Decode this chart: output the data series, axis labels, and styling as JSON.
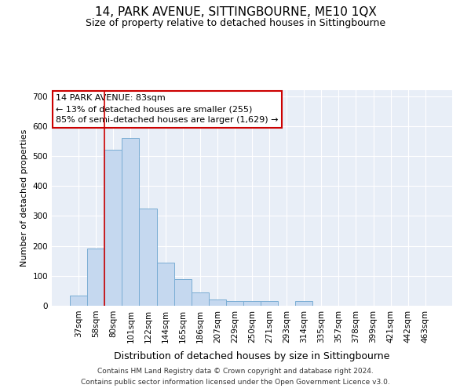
{
  "title": "14, PARK AVENUE, SITTINGBOURNE, ME10 1QX",
  "subtitle": "Size of property relative to detached houses in Sittingbourne",
  "xlabel": "Distribution of detached houses by size in Sittingbourne",
  "ylabel": "Number of detached properties",
  "footnote1": "Contains HM Land Registry data © Crown copyright and database right 2024.",
  "footnote2": "Contains public sector information licensed under the Open Government Licence v3.0.",
  "categories": [
    "37sqm",
    "58sqm",
    "80sqm",
    "101sqm",
    "122sqm",
    "144sqm",
    "165sqm",
    "186sqm",
    "207sqm",
    "229sqm",
    "250sqm",
    "271sqm",
    "293sqm",
    "314sqm",
    "335sqm",
    "357sqm",
    "378sqm",
    "399sqm",
    "421sqm",
    "442sqm",
    "463sqm"
  ],
  "values": [
    35,
    192,
    520,
    560,
    325,
    145,
    90,
    45,
    20,
    15,
    15,
    15,
    0,
    15,
    0,
    0,
    0,
    0,
    0,
    0,
    0
  ],
  "bar_color": "#c5d8ef",
  "bar_edgecolor": "#7aadd4",
  "vline_color": "#cc0000",
  "vline_x_index": 1.5,
  "annotation_text": "14 PARK AVENUE: 83sqm\n← 13% of detached houses are smaller (255)\n85% of semi-detached houses are larger (1,629) →",
  "annotation_box_edgecolor": "#cc0000",
  "ylim": [
    0,
    720
  ],
  "yticks": [
    0,
    100,
    200,
    300,
    400,
    500,
    600,
    700
  ],
  "background_color": "#e8eef7",
  "grid_color": "#ffffff",
  "title_fontsize": 11,
  "subtitle_fontsize": 9,
  "xlabel_fontsize": 9,
  "ylabel_fontsize": 8,
  "tick_fontsize": 7.5,
  "annotation_fontsize": 8,
  "footnote_fontsize": 6.5
}
